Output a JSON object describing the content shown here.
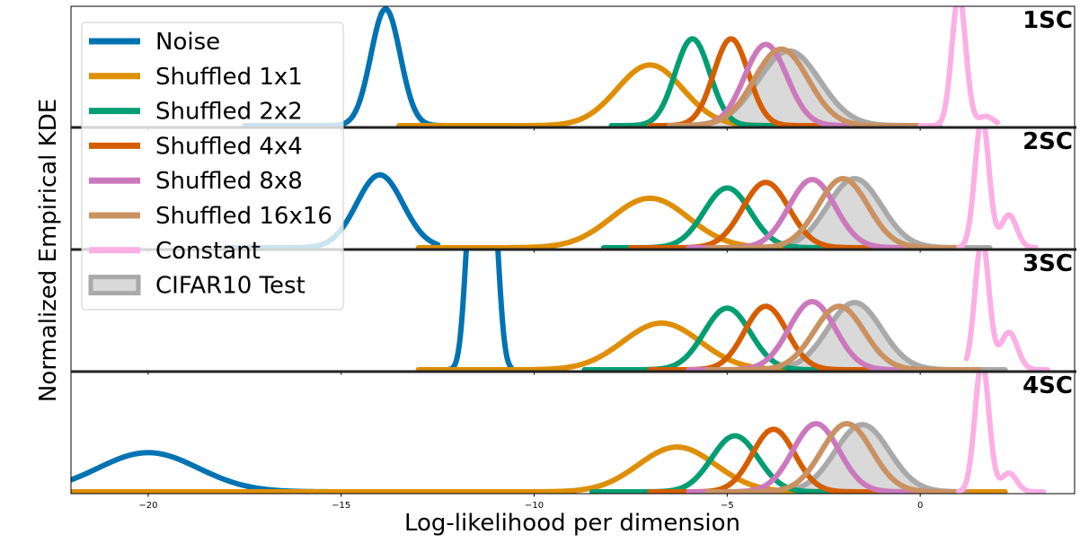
{
  "chart_data": {
    "type": "line",
    "title": "",
    "xlabel": "Log-likelihood per dimension",
    "ylabel": "Normalized Empirical KDE",
    "xlim": [
      -22,
      4
    ],
    "x_ticks": [
      -20,
      -15,
      -10,
      -5,
      0
    ],
    "x_tick_labels": [
      "−20",
      "−15",
      "−10",
      "−5",
      "0"
    ],
    "legend": {
      "placement": "upper-left",
      "entries": [
        {
          "key": "noise",
          "label": "Noise",
          "color": "#0173b2"
        },
        {
          "key": "shuffled_1x1",
          "label": "Shuffled 1x1",
          "color": "#de8f05"
        },
        {
          "key": "shuffled_2x2",
          "label": "Shuffled 2x2",
          "color": "#029e73"
        },
        {
          "key": "shuffled_4x4",
          "label": "Shuffled 4x4",
          "color": "#d55e00"
        },
        {
          "key": "shuffled_8x8",
          "label": "Shuffled 8x8",
          "color": "#cc78bc"
        },
        {
          "key": "shuffled_16x16",
          "label": "Shuffled 16x16",
          "color": "#ca9161"
        },
        {
          "key": "constant",
          "label": "Constant",
          "color": "#fbafe4"
        },
        {
          "key": "cifar10_test",
          "label": "CIFAR10 Test",
          "color": "#a9a9a9",
          "fill": "#d9d9d9"
        }
      ]
    },
    "panels": [
      {
        "label": "1SC",
        "series": {
          "noise": {
            "segments": [
              {
                "mu": -13.85,
                "sigma": 0.38,
                "h": 1.25
              }
            ],
            "range": [
              -17.5,
              -10.5
            ]
          },
          "shuffled_1x1": {
            "segments": [
              {
                "mu": -7.0,
                "sigma": 0.85,
                "h": 0.65
              }
            ],
            "range": [
              -13.5,
              -1.0
            ]
          },
          "shuffled_2x2": {
            "segments": [
              {
                "mu": -5.9,
                "sigma": 0.45,
                "h": 0.93
              }
            ],
            "range": [
              -8.0,
              -2.5
            ]
          },
          "shuffled_4x4": {
            "segments": [
              {
                "mu": -4.9,
                "sigma": 0.45,
                "h": 0.93
              }
            ],
            "range": [
              -7.0,
              -1.5
            ]
          },
          "shuffled_8x8": {
            "segments": [
              {
                "mu": -4.0,
                "sigma": 0.55,
                "h": 0.87
              }
            ],
            "range": [
              -6.5,
              -0.5
            ]
          },
          "shuffled_16x16": {
            "segments": [
              {
                "mu": -3.6,
                "sigma": 0.7,
                "h": 0.82
              }
            ],
            "range": [
              -6.5,
              0.0
            ]
          },
          "constant": {
            "segments": [
              {
                "mu": 1.0,
                "sigma": 0.18,
                "h": 1.4
              },
              {
                "mu": 1.7,
                "sigma": 0.2,
                "h": 0.1
              }
            ],
            "range": [
              0.0,
              2.0
            ]
          },
          "cifar10_test": {
            "segments": [
              {
                "mu": -3.4,
                "sigma": 0.8,
                "h": 0.8
              }
            ],
            "range": [
              -6.5,
              0.5
            ]
          }
        }
      },
      {
        "label": "2SC",
        "series": {
          "noise": {
            "segments": [
              {
                "mu": -14.0,
                "sigma": 0.6,
                "h": 0.78
              }
            ],
            "range": [
              -18.0,
              -12.5
            ]
          },
          "shuffled_1x1": {
            "segments": [
              {
                "mu": -7.0,
                "sigma": 1.0,
                "h": 0.53
              }
            ],
            "range": [
              -13.0,
              -1.0
            ]
          },
          "shuffled_2x2": {
            "segments": [
              {
                "mu": -5.0,
                "sigma": 0.6,
                "h": 0.64
              }
            ],
            "range": [
              -8.2,
              -1.0
            ]
          },
          "shuffled_4x4": {
            "segments": [
              {
                "mu": -4.0,
                "sigma": 0.6,
                "h": 0.7
              }
            ],
            "range": [
              -7.5,
              -0.5
            ]
          },
          "shuffled_8x8": {
            "segments": [
              {
                "mu": -2.8,
                "sigma": 0.6,
                "h": 0.73
              }
            ],
            "range": [
              -6.0,
              0.5
            ]
          },
          "shuffled_16x16": {
            "segments": [
              {
                "mu": -2.0,
                "sigma": 0.65,
                "h": 0.74
              }
            ],
            "range": [
              -5.5,
              1.0
            ]
          },
          "constant": {
            "segments": [
              {
                "mu": 1.6,
                "sigma": 0.18,
                "h": 1.4
              },
              {
                "mu": 2.3,
                "sigma": 0.2,
                "h": 0.35
              }
            ],
            "range": [
              1.0,
              3.0
            ]
          },
          "cifar10_test": {
            "segments": [
              {
                "mu": -1.7,
                "sigma": 0.7,
                "h": 0.74
              }
            ],
            "range": [
              -5.5,
              1.8
            ]
          }
        }
      },
      {
        "label": "3SC",
        "series": {
          "noise": {
            "segments": [
              {
                "mu": -11.6,
                "sigma": 0.17,
                "h": 2.0
              },
              {
                "mu": -11.1,
                "sigma": 0.17,
                "h": 2.0
              }
            ],
            "range": [
              -12.2,
              -10.6
            ]
          },
          "shuffled_1x1": {
            "segments": [
              {
                "mu": -6.7,
                "sigma": 1.0,
                "h": 0.5
              }
            ],
            "range": [
              -13.0,
              -0.5
            ]
          },
          "shuffled_2x2": {
            "segments": [
              {
                "mu": -5.0,
                "sigma": 0.6,
                "h": 0.66
              }
            ],
            "range": [
              -8.7,
              -0.5
            ]
          },
          "shuffled_4x4": {
            "segments": [
              {
                "mu": -4.0,
                "sigma": 0.55,
                "h": 0.68
              }
            ],
            "range": [
              -7.0,
              0.0
            ]
          },
          "shuffled_8x8": {
            "segments": [
              {
                "mu": -2.8,
                "sigma": 0.6,
                "h": 0.73
              }
            ],
            "range": [
              -6.0,
              1.0
            ]
          },
          "shuffled_16x16": {
            "segments": [
              {
                "mu": -2.1,
                "sigma": 0.65,
                "h": 0.68
              }
            ],
            "range": [
              -5.5,
              1.5
            ]
          },
          "constant": {
            "segments": [
              {
                "mu": 1.6,
                "sigma": 0.18,
                "h": 1.4
              },
              {
                "mu": 2.3,
                "sigma": 0.22,
                "h": 0.4
              }
            ],
            "range": [
              1.2,
              3.3
            ]
          },
          "cifar10_test": {
            "segments": [
              {
                "mu": -1.7,
                "sigma": 0.7,
                "h": 0.72
              }
            ],
            "range": [
              -5.5,
              2.2
            ]
          }
        }
      },
      {
        "label": "4SC",
        "series": {
          "noise": {
            "segments": [
              {
                "mu": -20.0,
                "sigma": 1.3,
                "h": 0.42
              }
            ],
            "range": [
              -22.0,
              -10.0
            ]
          },
          "shuffled_1x1": {
            "segments": [
              {
                "mu": -6.3,
                "sigma": 1.0,
                "h": 0.48
              }
            ],
            "range": [
              -22.0,
              2.2
            ]
          },
          "shuffled_2x2": {
            "segments": [
              {
                "mu": -4.8,
                "sigma": 0.6,
                "h": 0.6
              }
            ],
            "range": [
              -8.5,
              -0.5
            ]
          },
          "shuffled_4x4": {
            "segments": [
              {
                "mu": -3.8,
                "sigma": 0.55,
                "h": 0.67
              }
            ],
            "range": [
              -7.0,
              0.5
            ]
          },
          "shuffled_8x8": {
            "segments": [
              {
                "mu": -2.7,
                "sigma": 0.6,
                "h": 0.73
              }
            ],
            "range": [
              -6.0,
              0.7
            ]
          },
          "shuffled_16x16": {
            "segments": [
              {
                "mu": -1.9,
                "sigma": 0.65,
                "h": 0.73
              }
            ],
            "range": [
              -5.5,
              1.2
            ]
          },
          "constant": {
            "segments": [
              {
                "mu": 1.6,
                "sigma": 0.18,
                "h": 1.4
              },
              {
                "mu": 2.3,
                "sigma": 0.2,
                "h": 0.2
              }
            ],
            "range": [
              1.0,
              3.2
            ]
          },
          "cifar10_test": {
            "segments": [
              {
                "mu": -1.5,
                "sigma": 0.7,
                "h": 0.72
              }
            ],
            "range": [
              -5.5,
              2.0
            ]
          }
        }
      }
    ]
  }
}
